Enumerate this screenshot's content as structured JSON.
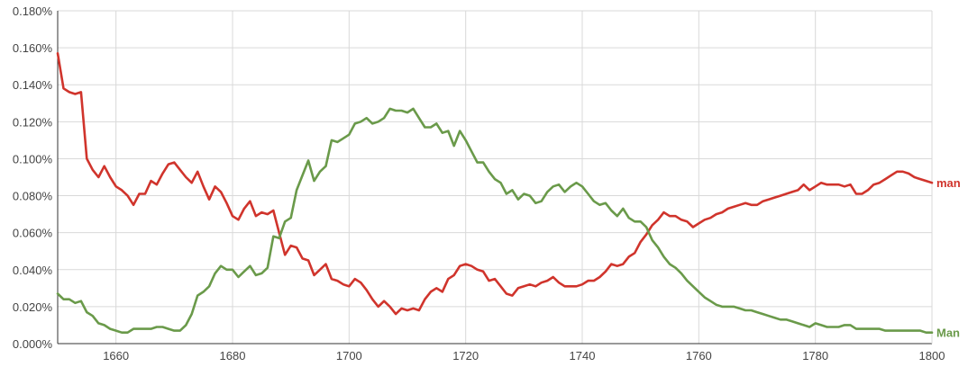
{
  "chart_data": {
    "type": "line",
    "title": "",
    "xlabel": "",
    "ylabel": "",
    "xlim": [
      1650,
      1800
    ],
    "ylim": [
      0,
      0.18
    ],
    "y_unit": "%",
    "grid": true,
    "legend": "end-of-line labels (right)",
    "x_ticks": [
      "1660",
      "1680",
      "1700",
      "1720",
      "1740",
      "1760",
      "1780",
      "1800"
    ],
    "y_ticks": [
      "0.000%",
      "0.020%",
      "0.040%",
      "0.060%",
      "0.080%",
      "0.100%",
      "0.120%",
      "0.140%",
      "0.160%",
      "0.180%"
    ],
    "series": [
      {
        "name": "man",
        "color": "#d0342c",
        "x": [
          1650,
          1651,
          1652,
          1653,
          1654,
          1655,
          1656,
          1657,
          1658,
          1659,
          1660,
          1661,
          1662,
          1663,
          1664,
          1665,
          1666,
          1667,
          1668,
          1669,
          1670,
          1671,
          1672,
          1673,
          1674,
          1675,
          1676,
          1677,
          1678,
          1679,
          1680,
          1681,
          1682,
          1683,
          1684,
          1685,
          1686,
          1687,
          1688,
          1689,
          1690,
          1691,
          1692,
          1693,
          1694,
          1695,
          1696,
          1697,
          1698,
          1699,
          1700,
          1701,
          1702,
          1703,
          1704,
          1705,
          1706,
          1707,
          1708,
          1709,
          1710,
          1711,
          1712,
          1713,
          1714,
          1715,
          1716,
          1717,
          1718,
          1719,
          1720,
          1721,
          1722,
          1723,
          1724,
          1725,
          1726,
          1727,
          1728,
          1729,
          1730,
          1731,
          1732,
          1733,
          1734,
          1735,
          1736,
          1737,
          1738,
          1739,
          1740,
          1741,
          1742,
          1743,
          1744,
          1745,
          1746,
          1747,
          1748,
          1749,
          1750,
          1751,
          1752,
          1753,
          1754,
          1755,
          1756,
          1757,
          1758,
          1759,
          1760,
          1761,
          1762,
          1763,
          1764,
          1765,
          1766,
          1767,
          1768,
          1769,
          1770,
          1771,
          1772,
          1773,
          1774,
          1775,
          1776,
          1777,
          1778,
          1779,
          1780,
          1781,
          1782,
          1783,
          1784,
          1785,
          1786,
          1787,
          1788,
          1789,
          1790,
          1791,
          1792,
          1793,
          1794,
          1795,
          1796,
          1797,
          1798,
          1799,
          1800
        ],
        "values": [
          0.157,
          0.138,
          0.136,
          0.135,
          0.136,
          0.1,
          0.094,
          0.09,
          0.096,
          0.09,
          0.085,
          0.083,
          0.08,
          0.075,
          0.081,
          0.081,
          0.088,
          0.086,
          0.092,
          0.097,
          0.098,
          0.094,
          0.09,
          0.087,
          0.093,
          0.085,
          0.078,
          0.085,
          0.082,
          0.076,
          0.069,
          0.067,
          0.073,
          0.077,
          0.069,
          0.071,
          0.07,
          0.072,
          0.06,
          0.048,
          0.053,
          0.052,
          0.046,
          0.045,
          0.037,
          0.04,
          0.043,
          0.035,
          0.034,
          0.032,
          0.031,
          0.035,
          0.033,
          0.029,
          0.024,
          0.02,
          0.023,
          0.02,
          0.016,
          0.019,
          0.018,
          0.019,
          0.018,
          0.024,
          0.028,
          0.03,
          0.028,
          0.035,
          0.037,
          0.042,
          0.043,
          0.042,
          0.04,
          0.039,
          0.034,
          0.035,
          0.031,
          0.027,
          0.026,
          0.03,
          0.031,
          0.032,
          0.031,
          0.033,
          0.034,
          0.036,
          0.033,
          0.031,
          0.031,
          0.031,
          0.032,
          0.034,
          0.034,
          0.036,
          0.039,
          0.043,
          0.042,
          0.043,
          0.047,
          0.049,
          0.055,
          0.059,
          0.064,
          0.067,
          0.071,
          0.069,
          0.069,
          0.067,
          0.066,
          0.063,
          0.065,
          0.067,
          0.068,
          0.07,
          0.071,
          0.073,
          0.074,
          0.075,
          0.076,
          0.075,
          0.075,
          0.077,
          0.078,
          0.079,
          0.08,
          0.081,
          0.082,
          0.083,
          0.086,
          0.083,
          0.085,
          0.087,
          0.086,
          0.086,
          0.086,
          0.085,
          0.086,
          0.081,
          0.081,
          0.083,
          0.086,
          0.087,
          0.089,
          0.091,
          0.093,
          0.093,
          0.092,
          0.09,
          0.089,
          0.088,
          0.087
        ],
        "end_label": "man"
      },
      {
        "name": "Man",
        "color": "#6a9a4a",
        "x": [
          1650,
          1651,
          1652,
          1653,
          1654,
          1655,
          1656,
          1657,
          1658,
          1659,
          1660,
          1661,
          1662,
          1663,
          1664,
          1665,
          1666,
          1667,
          1668,
          1669,
          1670,
          1671,
          1672,
          1673,
          1674,
          1675,
          1676,
          1677,
          1678,
          1679,
          1680,
          1681,
          1682,
          1683,
          1684,
          1685,
          1686,
          1687,
          1688,
          1689,
          1690,
          1691,
          1692,
          1693,
          1694,
          1695,
          1696,
          1697,
          1698,
          1699,
          1700,
          1701,
          1702,
          1703,
          1704,
          1705,
          1706,
          1707,
          1708,
          1709,
          1710,
          1711,
          1712,
          1713,
          1714,
          1715,
          1716,
          1717,
          1718,
          1719,
          1720,
          1721,
          1722,
          1723,
          1724,
          1725,
          1726,
          1727,
          1728,
          1729,
          1730,
          1731,
          1732,
          1733,
          1734,
          1735,
          1736,
          1737,
          1738,
          1739,
          1740,
          1741,
          1742,
          1743,
          1744,
          1745,
          1746,
          1747,
          1748,
          1749,
          1750,
          1751,
          1752,
          1753,
          1754,
          1755,
          1756,
          1757,
          1758,
          1759,
          1760,
          1761,
          1762,
          1763,
          1764,
          1765,
          1766,
          1767,
          1768,
          1769,
          1770,
          1771,
          1772,
          1773,
          1774,
          1775,
          1776,
          1777,
          1778,
          1779,
          1780,
          1781,
          1782,
          1783,
          1784,
          1785,
          1786,
          1787,
          1788,
          1789,
          1790,
          1791,
          1792,
          1793,
          1794,
          1795,
          1796,
          1797,
          1798,
          1799,
          1800
        ],
        "values": [
          0.027,
          0.024,
          0.024,
          0.022,
          0.023,
          0.017,
          0.015,
          0.011,
          0.01,
          0.008,
          0.007,
          0.006,
          0.006,
          0.008,
          0.008,
          0.008,
          0.008,
          0.009,
          0.009,
          0.008,
          0.007,
          0.007,
          0.01,
          0.016,
          0.026,
          0.028,
          0.031,
          0.038,
          0.042,
          0.04,
          0.04,
          0.036,
          0.039,
          0.042,
          0.037,
          0.038,
          0.041,
          0.058,
          0.057,
          0.066,
          0.068,
          0.083,
          0.091,
          0.099,
          0.088,
          0.093,
          0.096,
          0.11,
          0.109,
          0.111,
          0.113,
          0.119,
          0.12,
          0.122,
          0.119,
          0.12,
          0.122,
          0.127,
          0.126,
          0.126,
          0.125,
          0.127,
          0.122,
          0.117,
          0.117,
          0.119,
          0.114,
          0.115,
          0.107,
          0.115,
          0.11,
          0.104,
          0.098,
          0.098,
          0.093,
          0.089,
          0.087,
          0.081,
          0.083,
          0.078,
          0.081,
          0.08,
          0.076,
          0.077,
          0.082,
          0.085,
          0.086,
          0.082,
          0.085,
          0.087,
          0.085,
          0.081,
          0.077,
          0.075,
          0.076,
          0.072,
          0.069,
          0.073,
          0.068,
          0.066,
          0.066,
          0.063,
          0.056,
          0.052,
          0.047,
          0.043,
          0.041,
          0.038,
          0.034,
          0.031,
          0.028,
          0.025,
          0.023,
          0.021,
          0.02,
          0.02,
          0.02,
          0.019,
          0.018,
          0.018,
          0.017,
          0.016,
          0.015,
          0.014,
          0.013,
          0.013,
          0.012,
          0.011,
          0.01,
          0.009,
          0.011,
          0.01,
          0.009,
          0.009,
          0.009,
          0.01,
          0.01,
          0.008,
          0.008,
          0.008,
          0.008,
          0.008,
          0.007,
          0.007,
          0.007,
          0.007,
          0.007,
          0.007,
          0.007,
          0.006,
          0.006
        ],
        "end_label": "Man"
      }
    ]
  }
}
